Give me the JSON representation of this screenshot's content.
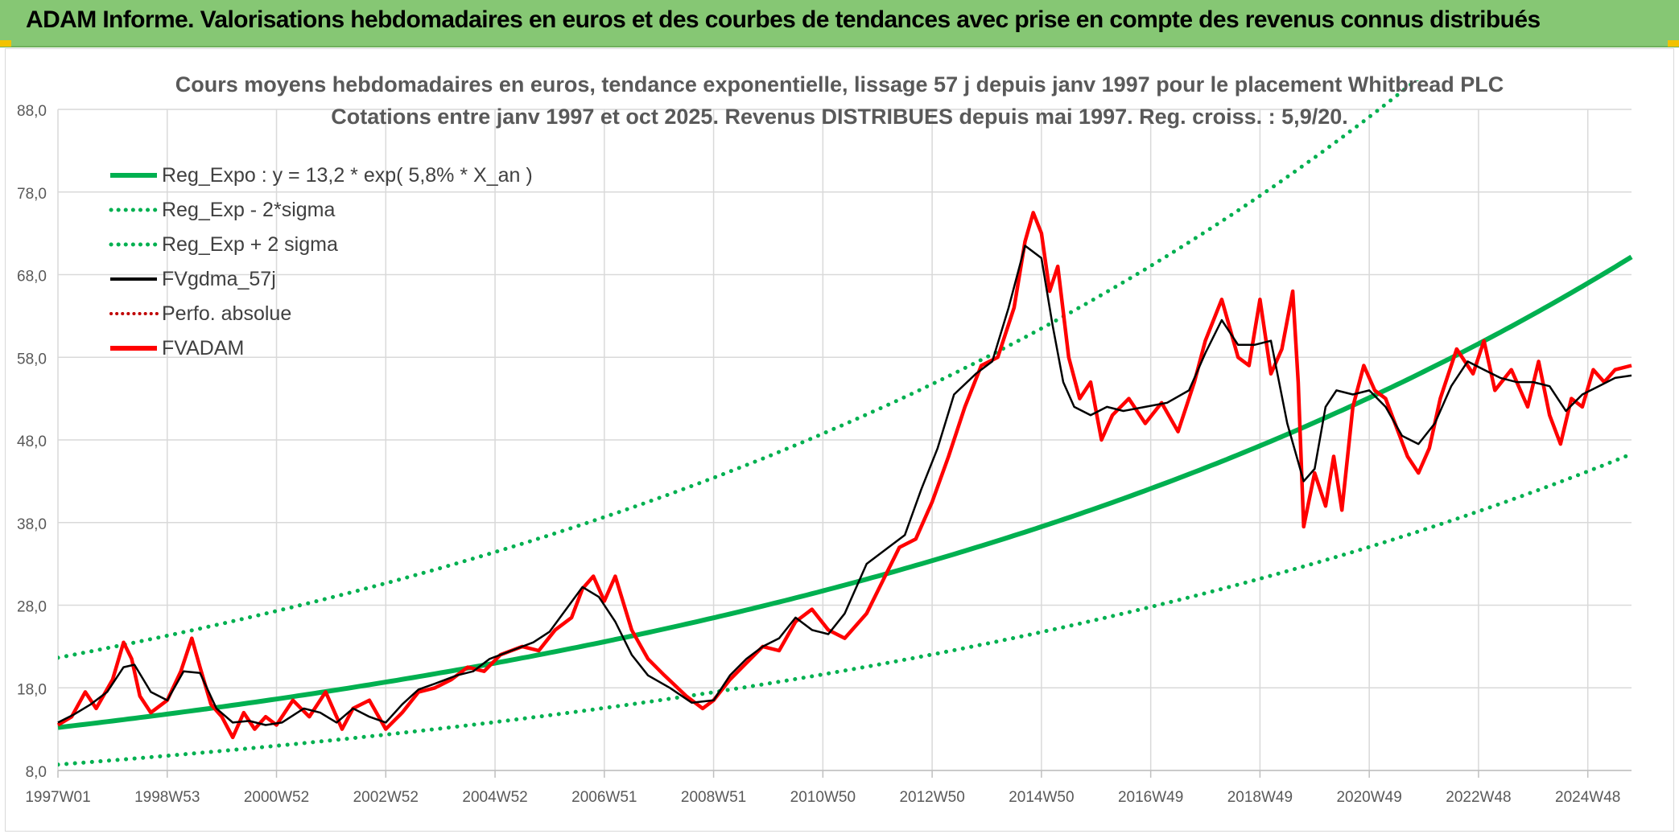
{
  "header": {
    "title": "ADAM Informe. Valorisations hebdomadaires en euros et des courbes de tendances avec prise en compte des revenus connus distribués"
  },
  "chart_data": {
    "type": "line",
    "title": "Cours moyens hebdomadaires en euros, tendance exponentielle, lissage 57 j depuis janv 1997 pour le placement Whitbread PLC",
    "subtitle": "Cotations entre janv 1997 et oct 2025. Revenus DISTRIBUES depuis mai 1997. Reg. croiss. : 5,9/20.",
    "xlabel": "",
    "ylabel": "",
    "xlim": [
      1997.0,
      2025.8
    ],
    "ylim": [
      8,
      88
    ],
    "grid": true,
    "legend_position": "top-left",
    "x_tick_labels": [
      "1997W01",
      "1998W53",
      "2000W52",
      "2002W52",
      "2004W52",
      "2006W51",
      "2008W51",
      "2010W50",
      "2012W50",
      "2014W50",
      "2016W49",
      "2018W49",
      "2020W49",
      "2022W48",
      "2024W48"
    ],
    "x_tick_values": [
      1997.0,
      1999.0,
      2001.0,
      2003.0,
      2005.0,
      2007.0,
      2009.0,
      2011.0,
      2013.0,
      2015.0,
      2017.0,
      2019.0,
      2021.0,
      2023.0,
      2025.0
    ],
    "y_tick_labels": [
      "8,0",
      "18,0",
      "28,0",
      "38,0",
      "48,0",
      "58,0",
      "68,0",
      "78,0",
      "88,0"
    ],
    "y_ticks": [
      8,
      18,
      28,
      38,
      48,
      58,
      68,
      78,
      88
    ],
    "colors": {
      "reg": "#00b050",
      "smooth": "#000000",
      "price": "#ff0000",
      "perf": "#c00000",
      "grid": "#d9d9d9",
      "tick_text": "#595959"
    },
    "regression": {
      "a": 13.2,
      "rate": 0.058,
      "sigma_factor_low": 0.66,
      "sigma_factor_high": 1.64
    },
    "series": [
      {
        "name": "Reg_Expo : y = 13,2 * exp( 5,8% *  X_an )",
        "style": "solid-thick",
        "color": "#00b050"
      },
      {
        "name": "Reg_Exp - 2*sigma",
        "style": "dotted",
        "color": "#00b050"
      },
      {
        "name": "Reg_Exp + 2 sigma",
        "style": "dotted",
        "color": "#00b050"
      },
      {
        "name": "FVgdma_57j",
        "style": "solid",
        "color": "#000000",
        "x": [
          1997.0,
          1997.3,
          1997.6,
          1997.9,
          1998.2,
          1998.4,
          1998.7,
          1999.0,
          1999.3,
          1999.6,
          1999.9,
          2000.2,
          2000.5,
          2000.8,
          2001.1,
          2001.5,
          2001.8,
          2002.1,
          2002.4,
          2002.7,
          2003.0,
          2003.3,
          2003.6,
          2003.9,
          2004.3,
          2004.6,
          2004.9,
          2005.3,
          2005.7,
          2006.0,
          2006.3,
          2006.6,
          2006.9,
          2007.2,
          2007.5,
          2007.8,
          2008.2,
          2008.6,
          2009.0,
          2009.3,
          2009.6,
          2009.9,
          2010.2,
          2010.5,
          2010.8,
          2011.1,
          2011.4,
          2011.8,
          2012.2,
          2012.5,
          2012.8,
          2013.1,
          2013.4,
          2013.8,
          2014.1,
          2014.4,
          2014.7,
          2015.0,
          2015.2,
          2015.4,
          2015.6,
          2015.9,
          2016.2,
          2016.5,
          2016.9,
          2017.3,
          2017.7,
          2018.0,
          2018.3,
          2018.6,
          2018.9,
          2019.2,
          2019.5,
          2019.8,
          2020.0,
          2020.2,
          2020.4,
          2020.7,
          2021.0,
          2021.3,
          2021.6,
          2021.9,
          2022.2,
          2022.5,
          2022.8,
          2023.1,
          2023.4,
          2023.7,
          2024.0,
          2024.3,
          2024.6,
          2024.9,
          2025.2,
          2025.5,
          2025.8
        ],
        "values": [
          13.8,
          14.8,
          16.0,
          17.5,
          20.5,
          20.8,
          17.5,
          16.5,
          20.0,
          19.8,
          15.5,
          13.8,
          14.0,
          13.5,
          13.8,
          15.5,
          15.0,
          13.8,
          15.5,
          14.5,
          13.8,
          16.0,
          17.8,
          18.5,
          19.5,
          20.0,
          21.5,
          22.5,
          23.5,
          24.8,
          27.5,
          30.2,
          29.0,
          26.0,
          22.0,
          19.5,
          18.0,
          16.2,
          16.5,
          19.5,
          21.5,
          23.0,
          24.0,
          26.5,
          25.0,
          24.5,
          27.0,
          33.0,
          35.0,
          36.5,
          42.0,
          47.0,
          53.5,
          56.0,
          57.5,
          64.0,
          71.5,
          70.0,
          62.0,
          55.0,
          52.0,
          51.0,
          52.0,
          51.5,
          52.0,
          52.5,
          54.0,
          58.5,
          62.5,
          59.5,
          59.5,
          60.0,
          50.0,
          43.0,
          44.5,
          52.0,
          54.0,
          53.5,
          54.0,
          52.0,
          48.5,
          47.5,
          50.0,
          54.5,
          57.5,
          56.5,
          55.5,
          55.0,
          55.0,
          54.5,
          51.5,
          53.5,
          54.5,
          55.5,
          55.8
        ]
      },
      {
        "name": "Perfo. absolue",
        "style": "dotted",
        "color": "#c00000"
      },
      {
        "name": "FVADAM",
        "style": "solid-thick",
        "color": "#ff0000",
        "x": [
          1997.0,
          1997.25,
          1997.5,
          1997.7,
          1998.0,
          1998.2,
          1998.35,
          1998.5,
          1998.7,
          1999.0,
          1999.25,
          1999.45,
          1999.6,
          1999.8,
          2000.0,
          2000.2,
          2000.4,
          2000.6,
          2000.8,
          2001.0,
          2001.3,
          2001.6,
          2001.9,
          2002.2,
          2002.4,
          2002.7,
          2003.0,
          2003.3,
          2003.6,
          2003.9,
          2004.2,
          2004.5,
          2004.8,
          2005.1,
          2005.5,
          2005.8,
          2006.1,
          2006.4,
          2006.6,
          2006.8,
          2007.0,
          2007.2,
          2007.5,
          2007.8,
          2008.1,
          2008.5,
          2008.8,
          2009.0,
          2009.3,
          2009.6,
          2009.9,
          2010.2,
          2010.5,
          2010.8,
          2011.1,
          2011.4,
          2011.8,
          2012.1,
          2012.4,
          2012.7,
          2013.0,
          2013.3,
          2013.6,
          2013.9,
          2014.2,
          2014.5,
          2014.7,
          2014.85,
          2015.0,
          2015.15,
          2015.3,
          2015.5,
          2015.7,
          2015.9,
          2016.1,
          2016.3,
          2016.6,
          2016.9,
          2017.2,
          2017.5,
          2017.8,
          2018.0,
          2018.3,
          2018.6,
          2018.8,
          2019.0,
          2019.2,
          2019.4,
          2019.6,
          2019.7,
          2019.8,
          2020.0,
          2020.2,
          2020.35,
          2020.5,
          2020.7,
          2020.9,
          2021.1,
          2021.3,
          2021.5,
          2021.7,
          2021.9,
          2022.1,
          2022.3,
          2022.6,
          2022.9,
          2023.1,
          2023.3,
          2023.6,
          2023.9,
          2024.1,
          2024.3,
          2024.5,
          2024.7,
          2024.9,
          2025.1,
          2025.3,
          2025.5,
          2025.8
        ],
        "values": [
          13.5,
          14.5,
          17.5,
          15.5,
          19.0,
          23.5,
          21.5,
          17.0,
          15.0,
          16.5,
          20.0,
          24.0,
          20.5,
          16.0,
          14.5,
          12.0,
          15.0,
          13.0,
          14.5,
          13.5,
          16.5,
          14.5,
          17.5,
          13.0,
          15.5,
          16.5,
          13.0,
          15.0,
          17.5,
          18.0,
          19.0,
          20.5,
          20.0,
          22.0,
          23.0,
          22.5,
          25.0,
          26.5,
          30.0,
          31.5,
          28.5,
          31.5,
          25.0,
          21.5,
          19.5,
          17.0,
          15.5,
          16.5,
          19.0,
          21.0,
          23.0,
          22.5,
          26.0,
          27.5,
          25.0,
          24.0,
          27.0,
          31.0,
          35.0,
          36.0,
          40.5,
          46.0,
          52.0,
          57.0,
          58.0,
          64.0,
          72.0,
          75.5,
          73.0,
          66.0,
          69.0,
          58.0,
          53.0,
          55.0,
          48.0,
          51.0,
          53.0,
          50.0,
          52.5,
          49.0,
          55.0,
          60.0,
          65.0,
          58.0,
          57.0,
          65.0,
          56.0,
          59.0,
          66.0,
          55.0,
          37.5,
          44.0,
          40.0,
          46.0,
          39.5,
          52.0,
          57.0,
          54.0,
          53.0,
          49.5,
          46.0,
          44.0,
          47.0,
          53.0,
          59.0,
          56.0,
          60.0,
          54.0,
          56.5,
          52.0,
          57.5,
          51.0,
          47.5,
          53.0,
          52.0,
          56.5,
          55.0,
          56.5,
          57.0
        ]
      }
    ]
  }
}
